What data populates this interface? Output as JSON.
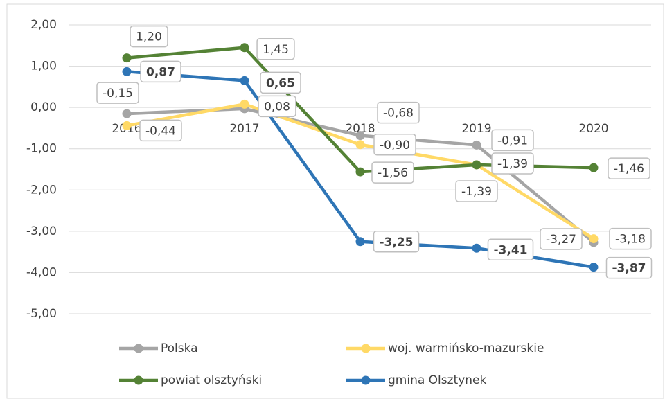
{
  "chart_data": {
    "type": "line",
    "categories": [
      "2016",
      "2017",
      "2018",
      "2019",
      "2020"
    ],
    "ylim": [
      -5,
      2
    ],
    "yticks": [
      {
        "value": 2,
        "label": "2,00"
      },
      {
        "value": 1,
        "label": "1,00"
      },
      {
        "value": 0,
        "label": "0,00"
      },
      {
        "value": -1,
        "label": "-1,00"
      },
      {
        "value": -2,
        "label": "-2,00"
      },
      {
        "value": -3,
        "label": "-3,00"
      },
      {
        "value": -4,
        "label": "-4,00"
      },
      {
        "value": -5,
        "label": "-5,00"
      }
    ],
    "grid": true,
    "legend": "bottom",
    "series": [
      {
        "name": "Polska",
        "color": "#a5a5a5",
        "values": [
          -0.15,
          -0.03,
          -0.68,
          -0.91,
          -3.27
        ],
        "value_labels": [
          "-0,15",
          null,
          "-0,68",
          "-0,91",
          "-3,27"
        ]
      },
      {
        "name": "woj. warmińsko-mazurskie",
        "color": "#ffd966",
        "values": [
          -0.44,
          0.08,
          -0.9,
          -1.39,
          -3.18
        ],
        "value_labels": [
          "-0,44",
          "0,08",
          "-0,90",
          "-1,39",
          "-3,18"
        ]
      },
      {
        "name": "powiat olsztyński",
        "color": "#548235",
        "values": [
          1.2,
          1.45,
          -1.56,
          -1.39,
          -1.46
        ],
        "value_labels": [
          "1,20",
          "1,45",
          "-1,56",
          "-1,39",
          "-1,46"
        ]
      },
      {
        "name": "gmina Olsztynek",
        "color": "#2e75b6",
        "values": [
          0.87,
          0.65,
          -3.25,
          -3.41,
          -3.87
        ],
        "value_labels": [
          "0,87",
          "0,65",
          "-3,25",
          "-3,41",
          "-3,87"
        ],
        "bold_labels": true
      }
    ]
  }
}
